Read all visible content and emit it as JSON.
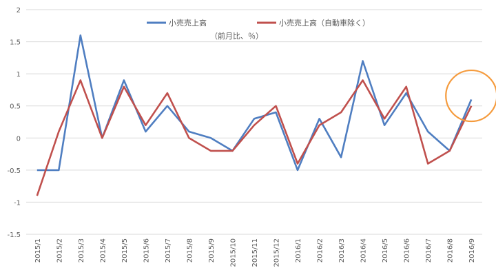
{
  "chart_data": {
    "type": "line",
    "title": "",
    "xlabel": "",
    "ylabel": "",
    "note": "（前月比、％）",
    "ylim": [
      -1.5,
      2
    ],
    "yticks": [
      -1.5,
      -1,
      -0.5,
      0,
      0.5,
      1,
      1.5,
      2
    ],
    "ytick_labels": [
      "-1.5",
      "-1",
      "-0.5",
      "0",
      "0.5",
      "1",
      "1.5",
      "2"
    ],
    "grid": true,
    "legend": "top",
    "categories": [
      "2015/1",
      "2015/2",
      "2015/3",
      "2015/4",
      "2015/5",
      "2015/6",
      "2015/7",
      "2015/8",
      "2015/9",
      "2015/10",
      "2015/11",
      "2015/12",
      "2016/1",
      "2016/2",
      "2016/3",
      "2016/4",
      "2016/5",
      "2016/6",
      "2016/7",
      "2016/8",
      "2016/9"
    ],
    "series": [
      {
        "name": "小売売上高",
        "color": "#4f7ec1",
        "values": [
          -0.5,
          -0.5,
          1.6,
          0.0,
          0.9,
          0.1,
          0.5,
          0.1,
          0.0,
          -0.2,
          0.3,
          0.4,
          -0.5,
          0.3,
          -0.3,
          1.2,
          0.2,
          0.7,
          0.1,
          -0.2,
          0.6
        ]
      },
      {
        "name": "小売売上高（自動車除く）",
        "color": "#c0504d",
        "values": [
          -0.9,
          0.1,
          0.9,
          0.0,
          0.8,
          0.2,
          0.7,
          0.0,
          -0.2,
          -0.2,
          0.2,
          0.5,
          -0.4,
          0.2,
          0.4,
          0.9,
          0.3,
          0.8,
          -0.4,
          -0.2,
          0.5
        ]
      }
    ],
    "highlight": {
      "category": "2016/9",
      "color": "#f59b3d"
    }
  }
}
